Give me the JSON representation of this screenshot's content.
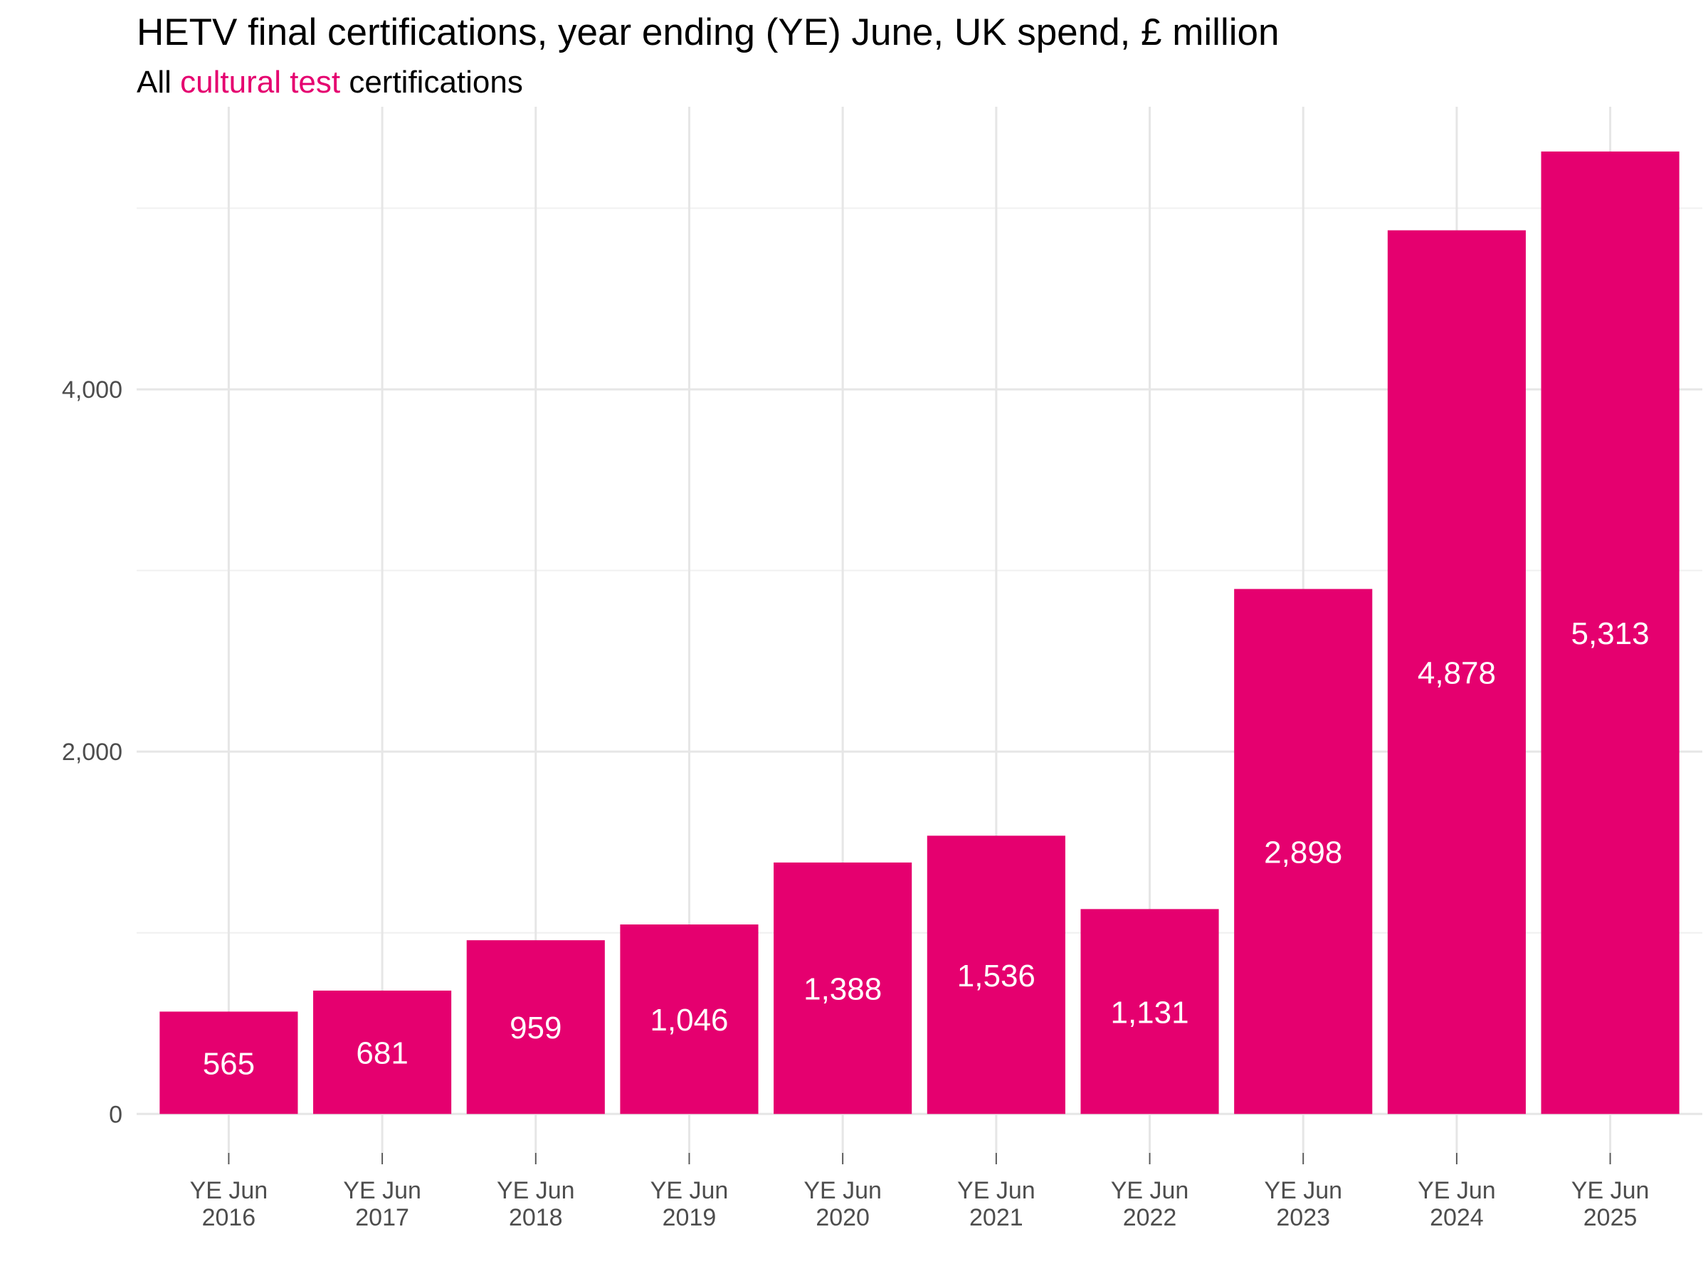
{
  "title": "HETV final certifications, year ending (YE) June, UK spend, £ million",
  "subtitle": {
    "prefix": "All ",
    "highlight": "cultural test",
    "suffix": " certifications"
  },
  "colors": {
    "bar": "#e5006f",
    "highlight_text": "#e5006f",
    "bar_label": "#ffffff"
  },
  "chart_data": {
    "type": "bar",
    "categories": [
      [
        "YE Jun",
        "2016"
      ],
      [
        "YE Jun",
        "2017"
      ],
      [
        "YE Jun",
        "2018"
      ],
      [
        "YE Jun",
        "2019"
      ],
      [
        "YE Jun",
        "2020"
      ],
      [
        "YE Jun",
        "2021"
      ],
      [
        "YE Jun",
        "2022"
      ],
      [
        "YE Jun",
        "2023"
      ],
      [
        "YE Jun",
        "2024"
      ],
      [
        "YE Jun",
        "2025"
      ]
    ],
    "values": [
      565,
      681,
      959,
      1046,
      1388,
      1536,
      1131,
      2898,
      4878,
      5313
    ],
    "data_labels": [
      "565",
      "681",
      "959",
      "1,046",
      "1,388",
      "1,536",
      "1,131",
      "2,898",
      "4,878",
      "5,313"
    ],
    "y_ticks": [
      0,
      2000,
      4000
    ],
    "y_tick_labels": [
      "0",
      "2,000",
      "4,000"
    ],
    "y_minor_ticks": [
      1000,
      3000,
      5000
    ],
    "ylim": [
      -215,
      5560
    ],
    "xlabel": "",
    "ylabel": "",
    "grid": true,
    "legend": "none"
  }
}
